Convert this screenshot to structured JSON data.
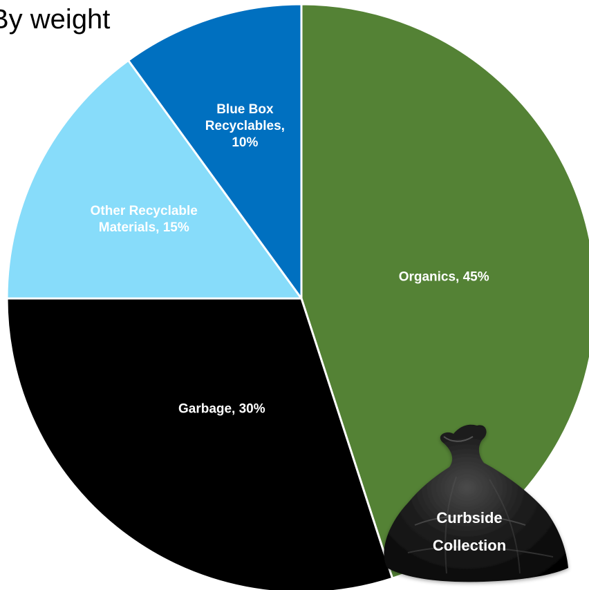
{
  "chart_data": {
    "type": "pie",
    "title": "By weight",
    "slices": [
      {
        "name": "Organics",
        "value": 45,
        "label": "Organics, 45%",
        "color": "#548235",
        "label_color": "#ffffff"
      },
      {
        "name": "Garbage",
        "value": 30,
        "label": "Garbage, 30%",
        "color": "#000000",
        "label_color": "#ffffff"
      },
      {
        "name": "Other Recyclable Materials",
        "value": 15,
        "label": "Other Recyclable Materials, 15%",
        "color": "#87dcfa",
        "label_color": "#ffffff"
      },
      {
        "name": "Blue Box Recyclables",
        "value": 10,
        "label": "Blue Box Recyclables, 10%",
        "color": "#0070c0",
        "label_color": "#ffffff"
      }
    ],
    "start_direction": "12 o'clock",
    "order": "clockwise"
  },
  "annotation": {
    "icon": "garbage-bag-icon",
    "text": "Curbside Collection"
  }
}
